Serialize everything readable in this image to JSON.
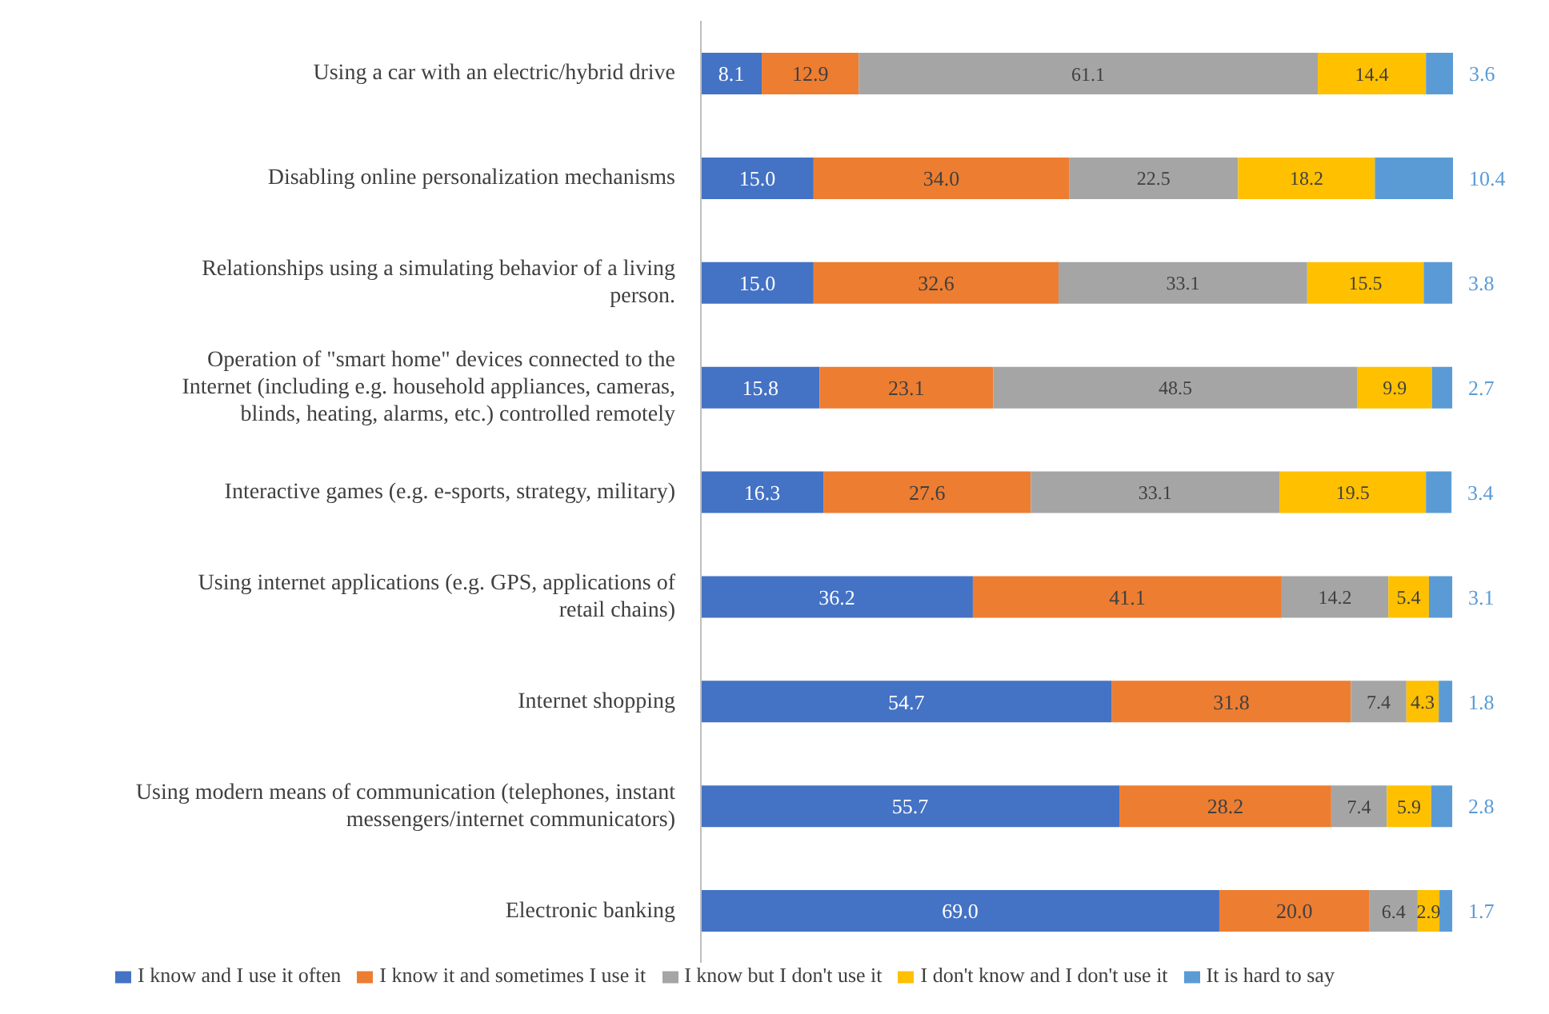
{
  "chart_data": {
    "type": "bar",
    "orientation": "horizontal",
    "stacked": true,
    "legend": "bottom",
    "categories": [
      "Using a car with an electric/hybrid drive",
      "Disabling online personalization mechanisms",
      "Relationships using a simulating behavior of a living person.",
      "Operation of \"smart home\" devices connected to the Internet (including e.g. household appliances, cameras, blinds, heating, alarms, etc.) controlled remotely",
      "Interactive games (e.g. e-sports, strategy, military)",
      "Using internet applications (e.g. GPS, applications of retail chains)",
      "Internet shopping",
      "Using modern means of communication (telephones, instant messengers/internet communicators)",
      "Electronic banking"
    ],
    "series": [
      {
        "name": "I know and I use it often",
        "color": "#4472c4",
        "values": [
          8.1,
          15.0,
          15.0,
          15.8,
          16.3,
          36.2,
          54.7,
          55.7,
          69.0
        ],
        "value_labels": [
          "8.1",
          "15.0",
          "15.0",
          "15.8",
          "16.3",
          "36.2",
          "54.7",
          "55.7",
          "69.0"
        ]
      },
      {
        "name": "I know it and sometimes I use it",
        "color": "#ed7d31",
        "values": [
          12.9,
          34.0,
          32.6,
          23.1,
          27.6,
          41.1,
          31.8,
          28.2,
          20.0
        ],
        "value_labels": [
          "12.9",
          "34.0",
          "32.6",
          "23.1",
          "27.6",
          "41.1",
          "31.8",
          "28.2",
          "20.0"
        ]
      },
      {
        "name": "I know but I don't use it",
        "color": "#a5a5a5",
        "values": [
          61.1,
          22.5,
          33.1,
          48.5,
          33.1,
          14.2,
          7.4,
          7.4,
          6.4
        ],
        "value_labels": [
          "61.1",
          "22.5",
          "33.1",
          "48.5",
          "33.1",
          "14.2",
          "7.4",
          "7.4",
          "6.4"
        ]
      },
      {
        "name": "I don't know and I don't use it",
        "color": "#ffc000",
        "values": [
          14.4,
          18.2,
          15.5,
          9.9,
          19.5,
          5.4,
          4.3,
          5.9,
          2.9
        ],
        "value_labels": [
          "14.4",
          "18.2",
          "15.5",
          "9.9",
          "19.5",
          "5.4",
          "4.3",
          "5.9",
          "2.9"
        ]
      },
      {
        "name": "It is hard to say",
        "color": "#5b9bd5",
        "values": [
          3.6,
          10.4,
          3.8,
          2.7,
          3.4,
          3.1,
          1.8,
          2.8,
          1.7
        ],
        "value_labels": [
          "3.6",
          "10.4",
          "3.8",
          "2.7",
          "3.4",
          "3.1",
          "1.8",
          "2.8",
          "1.7"
        ]
      }
    ]
  }
}
